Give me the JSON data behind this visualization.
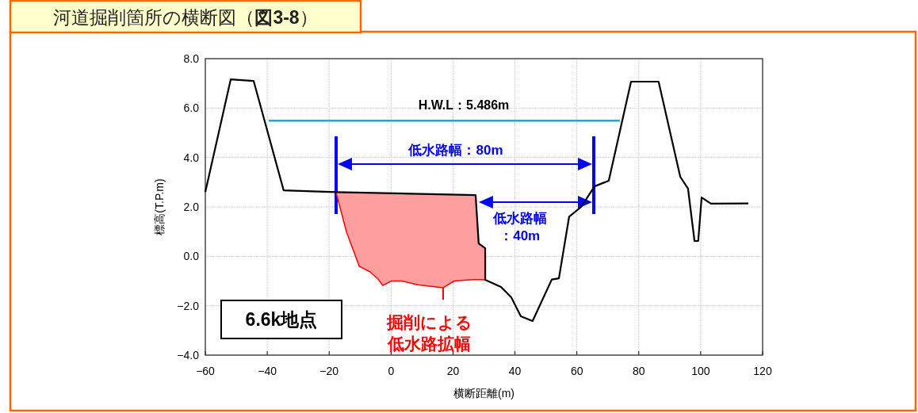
{
  "chart_data": {
    "type": "line",
    "title": "河道掘削箇所の横断図（**図3-8**）",
    "xlabel": "横断距離(m)",
    "ylabel": "標高(T.P.m)",
    "xlim": [
      -60,
      120
    ],
    "ylim": [
      -4,
      8
    ],
    "xticks": [
      {
        "value": -60,
        "label": "−60"
      },
      {
        "value": -40,
        "label": "−40"
      },
      {
        "value": -20,
        "label": "−20"
      },
      0,
      20,
      40,
      60,
      80,
      100,
      120
    ],
    "yticks": [
      {
        "value": -4,
        "label": "−4.0"
      },
      {
        "value": -2,
        "label": "−2.0"
      },
      {
        "value": 0,
        "label": "0.0"
      },
      {
        "value": 2,
        "label": "2.0"
      },
      {
        "value": 4,
        "label": "4.0"
      },
      {
        "value": 6,
        "label": "6.0"
      },
      {
        "value": 8,
        "label": "8.0"
      }
    ],
    "grid": true,
    "series": [
      {
        "color": "#ff0000",
        "x": [
          -17.8,
          -14.4,
          -10.3,
          -6.8,
          -4.2,
          -2.7,
          0.1,
          3.5,
          8.6,
          16.8,
          20.4,
          25.5,
          27.3,
          28.3,
          30.4
        ],
        "values": [
          2.6,
          0.98,
          -0.4,
          -0.63,
          -0.92,
          -1.18,
          -1.0,
          -1.0,
          -1.15,
          -1.27,
          -1.0,
          -0.95,
          -0.94,
          -0.94,
          -0.95
        ],
        "lower": [
          2.6,
          0.98,
          -0.4,
          -0.63,
          -0.92,
          -1.18,
          -1.0,
          -1.0,
          -1.15,
          -1.27,
          -1.0,
          -0.95,
          -0.94,
          -0.94,
          -0.95
        ],
        "upper": [
          2.6,
          2.6,
          2.59,
          2.58,
          2.57,
          2.57,
          2.56,
          2.55,
          2.54,
          2.52,
          2.51,
          2.49,
          2.48,
          0.52,
          0.33
        ]
      },
      {
        "color": "#000000",
        "x": [
          -60,
          -51.8,
          -44.4,
          -34.7,
          -17.8,
          27.3,
          28.3,
          30.4,
          30.4,
          35.5,
          38.8,
          41.9,
          45.7,
          51.9,
          54.2,
          57.5,
          61.4,
          65.7,
          70.3,
          77.5,
          86.4,
          93.4,
          95.9,
          98.0,
          99.2,
          100.3,
          103.3,
          115.4
        ],
        "values": [
          2.6,
          7.16,
          7.1,
          2.67,
          2.6,
          2.48,
          0.52,
          0.33,
          -0.95,
          -1.24,
          -1.66,
          -2.43,
          -2.62,
          -0.94,
          -0.89,
          1.6,
          2.0,
          2.83,
          3.06,
          7.07,
          7.07,
          3.22,
          2.74,
          0.62,
          0.62,
          2.38,
          2.13,
          2.14
        ]
      }
    ],
    "ref_lines": [
      {
        "axis": "y",
        "value": 5.486,
        "label": "H.W.L：5.486m",
        "color": "#00b0f0"
      }
    ],
    "annotations": [
      "低水路幅：80m",
      {
        "text": "低水路幅：40m",
        "x": 28.3,
        "y": 2.19
      },
      "掘削による低水路拡幅",
      "6.6k地点"
    ]
  }
}
